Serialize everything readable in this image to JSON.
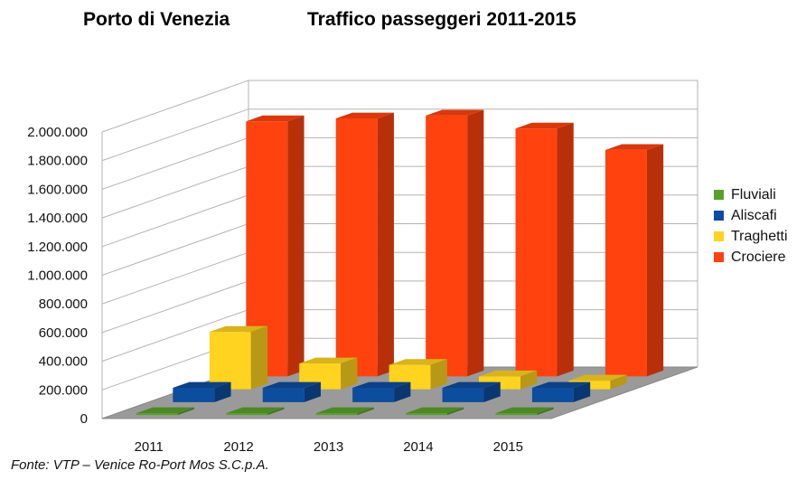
{
  "header": {
    "left_title": "Porto di Venezia",
    "right_title": "Traffico passeggeri 2011-2015"
  },
  "source_note": "Fonte: VTP – Venice Ro-Port Mos S.C.p.A.",
  "chart_data": {
    "type": "bar",
    "style": "3d-depth",
    "title": "Traffico passeggeri 2011-2015",
    "categories": [
      "2011",
      "2012",
      "2013",
      "2014",
      "2015"
    ],
    "series": [
      {
        "name": "Fluviali",
        "color": "#5aa02c",
        "values": [
          5000,
          5000,
          5000,
          5000,
          5000
        ]
      },
      {
        "name": "Aliscafi",
        "color": "#0d4d9e",
        "values": [
          100000,
          100000,
          100000,
          100000,
          100000
        ]
      },
      {
        "name": "Traghetti",
        "color": "#ffd320",
        "values": [
          400000,
          180000,
          170000,
          90000,
          60000
        ]
      },
      {
        "name": "Crociere",
        "color": "#ff420e",
        "values": [
          1780000,
          1800000,
          1820000,
          1730000,
          1580000
        ]
      }
    ],
    "ylim": [
      0,
      2000000
    ],
    "y_ticks": [
      "0",
      "200.000",
      "400.000",
      "600.000",
      "800.000",
      "1.000.000",
      "1.200.000",
      "1.400.000",
      "1.600.000",
      "1.800.000",
      "2.000.000"
    ],
    "grid": true,
    "legend_position": "right"
  }
}
